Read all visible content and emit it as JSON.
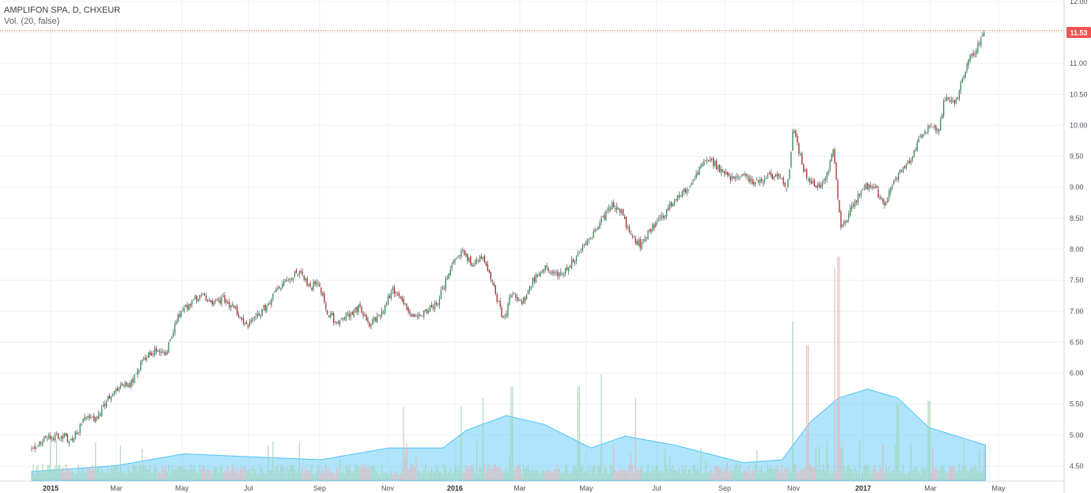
{
  "legend": {
    "symbol": "AMPLIFON SPA, D, CHXEUR",
    "volume": "Vol. (20, false)"
  },
  "last_price": "11.53",
  "colors": {
    "up": "#2e8b57",
    "down": "#a52a2a",
    "wick": "#555555",
    "grid": "#eef0f3",
    "price_line": "#e74c3c",
    "badge": "#ef5350",
    "vol_up": "#9fd3b2",
    "vol_down": "#e6b3ae",
    "vol_ma": "#4fc3f7"
  },
  "chart_data": {
    "type": "candlestick",
    "y_axis": {
      "range": [
        4.3,
        12.0
      ],
      "ticks": [
        "12.00",
        "11.50",
        "11.00",
        "10.50",
        "10.00",
        "9.50",
        "9.00",
        "8.50",
        "8.00",
        "7.50",
        "7.00",
        "6.50",
        "6.00",
        "5.50",
        "5.00",
        "4.50"
      ]
    },
    "x_axis": {
      "ticks": [
        {
          "label": "2015",
          "strong": true
        },
        {
          "label": "Mar",
          "strong": false
        },
        {
          "label": "May",
          "strong": false
        },
        {
          "label": "Jul",
          "strong": false
        },
        {
          "label": "Sep",
          "strong": false
        },
        {
          "label": "Nov",
          "strong": false
        },
        {
          "label": "2016",
          "strong": true
        },
        {
          "label": "Mar",
          "strong": false
        },
        {
          "label": "May",
          "strong": false
        },
        {
          "label": "Jul",
          "strong": false
        },
        {
          "label": "Sep",
          "strong": false
        },
        {
          "label": "Nov",
          "strong": false
        },
        {
          "label": "2017",
          "strong": true
        },
        {
          "label": "Mar",
          "strong": false
        },
        {
          "label": "May",
          "strong": false
        }
      ]
    },
    "price_path": [
      [
        "2014-12-15",
        4.8
      ],
      [
        "2014-12-29",
        4.95
      ],
      [
        "2015-01-10",
        5.0
      ],
      [
        "2015-01-20",
        4.9
      ],
      [
        "2015-02-01",
        5.3
      ],
      [
        "2015-02-10",
        5.25
      ],
      [
        "2015-02-20",
        5.55
      ],
      [
        "2015-03-05",
        5.75
      ],
      [
        "2015-03-15",
        5.85
      ],
      [
        "2015-03-25",
        6.2
      ],
      [
        "2015-04-05",
        6.4
      ],
      [
        "2015-04-15",
        6.35
      ],
      [
        "2015-04-25",
        6.9
      ],
      [
        "2015-05-05",
        7.1
      ],
      [
        "2015-05-15",
        7.25
      ],
      [
        "2015-05-25",
        7.15
      ],
      [
        "2015-06-05",
        7.2
      ],
      [
        "2015-06-15",
        7.05
      ],
      [
        "2015-06-25",
        6.75
      ],
      [
        "2015-07-05",
        6.9
      ],
      [
        "2015-07-15",
        7.1
      ],
      [
        "2015-07-25",
        7.4
      ],
      [
        "2015-08-05",
        7.55
      ],
      [
        "2015-08-15",
        7.65
      ],
      [
        "2015-08-22",
        7.35
      ],
      [
        "2015-08-30",
        7.5
      ],
      [
        "2015-09-05",
        7.05
      ],
      [
        "2015-09-15",
        6.8
      ],
      [
        "2015-09-25",
        6.95
      ],
      [
        "2015-10-05",
        7.05
      ],
      [
        "2015-10-15",
        6.8
      ],
      [
        "2015-10-25",
        6.95
      ],
      [
        "2015-11-05",
        7.35
      ],
      [
        "2015-11-15",
        7.1
      ],
      [
        "2015-11-25",
        6.85
      ],
      [
        "2015-12-05",
        7.0
      ],
      [
        "2015-12-15",
        7.15
      ],
      [
        "2015-12-25",
        7.6
      ],
      [
        "2016-01-05",
        8.0
      ],
      [
        "2016-01-15",
        7.75
      ],
      [
        "2016-01-25",
        7.9
      ],
      [
        "2016-02-05",
        7.3
      ],
      [
        "2016-02-12",
        6.85
      ],
      [
        "2016-02-20",
        7.3
      ],
      [
        "2016-03-01",
        7.15
      ],
      [
        "2016-03-10",
        7.5
      ],
      [
        "2016-03-20",
        7.7
      ],
      [
        "2016-04-01",
        7.55
      ],
      [
        "2016-04-10",
        7.7
      ],
      [
        "2016-04-20",
        7.95
      ],
      [
        "2016-05-01",
        8.2
      ],
      [
        "2016-05-10",
        8.45
      ],
      [
        "2016-05-20",
        8.7
      ],
      [
        "2016-05-28",
        8.6
      ],
      [
        "2016-06-05",
        8.25
      ],
      [
        "2016-06-15",
        8.05
      ],
      [
        "2016-06-25",
        8.35
      ],
      [
        "2016-07-05",
        8.55
      ],
      [
        "2016-07-15",
        8.8
      ],
      [
        "2016-07-25",
        8.95
      ],
      [
        "2016-08-05",
        9.25
      ],
      [
        "2016-08-15",
        9.45
      ],
      [
        "2016-08-25",
        9.3
      ],
      [
        "2016-09-05",
        9.15
      ],
      [
        "2016-09-15",
        9.2
      ],
      [
        "2016-09-25",
        9.05
      ],
      [
        "2016-10-05",
        9.15
      ],
      [
        "2016-10-15",
        9.2
      ],
      [
        "2016-10-25",
        9.0
      ],
      [
        "2016-10-30",
        9.95
      ],
      [
        "2016-11-08",
        9.3
      ],
      [
        "2016-11-18",
        9.0
      ],
      [
        "2016-11-28",
        9.1
      ],
      [
        "2016-12-05",
        9.65
      ],
      [
        "2016-12-12",
        8.3
      ],
      [
        "2016-12-20",
        8.6
      ],
      [
        "2016-12-30",
        8.95
      ],
      [
        "2017-01-10",
        9.05
      ],
      [
        "2017-01-20",
        8.7
      ],
      [
        "2017-01-30",
        9.15
      ],
      [
        "2017-02-10",
        9.35
      ],
      [
        "2017-02-20",
        9.75
      ],
      [
        "2017-03-01",
        9.95
      ],
      [
        "2017-03-10",
        9.9
      ],
      [
        "2017-03-15",
        10.45
      ],
      [
        "2017-03-25",
        10.35
      ],
      [
        "2017-04-05",
        11.0
      ],
      [
        "2017-04-15",
        11.3
      ],
      [
        "2017-04-21",
        11.53
      ]
    ],
    "volume_spikes": [
      [
        "2015-11-15",
        1.25
      ],
      [
        "2016-01-05",
        1.25
      ],
      [
        "2016-01-25",
        1.4
      ],
      [
        "2016-02-20",
        1.6
      ],
      [
        "2016-04-20",
        1.6
      ],
      [
        "2016-05-10",
        1.8
      ],
      [
        "2016-06-10",
        1.4
      ],
      [
        "2016-10-30",
        2.7
      ],
      [
        "2016-11-12",
        2.3
      ],
      [
        "2016-12-06",
        3.6
      ],
      [
        "2016-12-10",
        3.8
      ],
      [
        "2017-02-01",
        1.3
      ],
      [
        "2017-03-01",
        1.35
      ]
    ],
    "volume_ma": [
      [
        "2014-12-15",
        0.15
      ],
      [
        "2015-03-01",
        0.25
      ],
      [
        "2015-05-01",
        0.45
      ],
      [
        "2015-07-01",
        0.4
      ],
      [
        "2015-09-01",
        0.35
      ],
      [
        "2015-11-01",
        0.55
      ],
      [
        "2015-12-20",
        0.55
      ],
      [
        "2016-01-10",
        0.85
      ],
      [
        "2016-02-15",
        1.1
      ],
      [
        "2016-03-20",
        0.95
      ],
      [
        "2016-05-01",
        0.55
      ],
      [
        "2016-06-01",
        0.75
      ],
      [
        "2016-07-15",
        0.6
      ],
      [
        "2016-09-15",
        0.3
      ],
      [
        "2016-10-20",
        0.35
      ],
      [
        "2016-11-15",
        1.0
      ],
      [
        "2016-12-10",
        1.4
      ],
      [
        "2017-01-05",
        1.55
      ],
      [
        "2017-02-01",
        1.4
      ],
      [
        "2017-03-01",
        0.9
      ],
      [
        "2017-04-21",
        0.6
      ]
    ]
  }
}
